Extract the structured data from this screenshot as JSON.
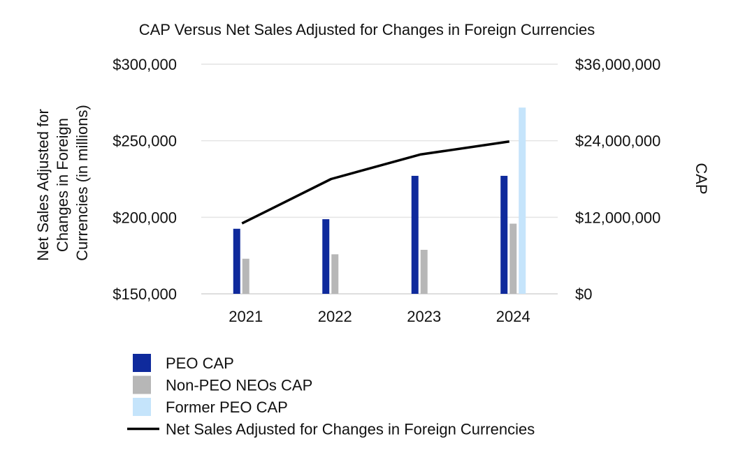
{
  "chart_data": {
    "type": "bar",
    "title": "CAP Versus Net Sales Adjusted for Changes in Foreign Currencies",
    "categories": [
      "2021",
      "2022",
      "2023",
      "2024"
    ],
    "y_left": {
      "label_lines": [
        "Net Sales Adjusted for",
        "Changes in Foreign",
        "Currencies  (in millions)"
      ],
      "range": [
        150000,
        300000
      ],
      "ticks": [
        150000,
        200000,
        250000,
        300000
      ],
      "tick_labels": [
        "$150,000",
        "$200,000",
        "$250,000",
        "$300,000"
      ]
    },
    "y_right": {
      "label": "CAP",
      "range": [
        0,
        36000000
      ],
      "ticks": [
        0,
        12000000,
        24000000,
        36000000
      ],
      "tick_labels": [
        "$0",
        "$12,000,000",
        "$24,000,000",
        "$36,000,000"
      ]
    },
    "series": [
      {
        "name": "PEO CAP",
        "kind": "bar",
        "axis": "right",
        "color": "#0f2a9c",
        "values": [
          10200000,
          11700000,
          18500000,
          18500000
        ]
      },
      {
        "name": "Non-PEO NEOs CAP",
        "kind": "bar",
        "axis": "right",
        "color": "#b7b7b7",
        "values": [
          5500000,
          6200000,
          6900000,
          11000000
        ]
      },
      {
        "name": "Former PEO CAP",
        "kind": "bar",
        "axis": "right",
        "color": "#c5e4fb",
        "values": [
          null,
          null,
          null,
          29200000
        ]
      },
      {
        "name": "Net Sales Adjusted for Changes in Foreign Currencies",
        "kind": "line",
        "axis": "left",
        "color": "#000000",
        "values": [
          196000,
          225000,
          241000,
          249500
        ]
      }
    ],
    "grid": true,
    "legend_position": "bottom-left"
  }
}
